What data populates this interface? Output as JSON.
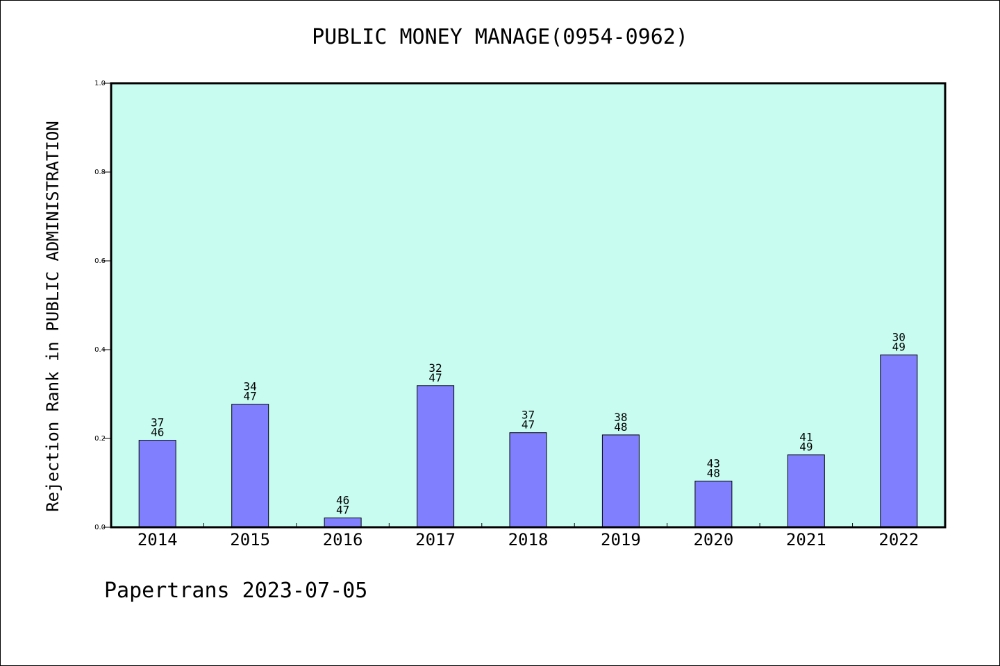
{
  "title": "PUBLIC MONEY MANAGE(0954-0962)",
  "footer": "Papertrans 2023-07-05",
  "colors": {
    "plot_background": "#c8fcf0",
    "bar_fill": "#8080ff",
    "axis": "#000000"
  },
  "chart_data": {
    "type": "bar",
    "title": "PUBLIC MONEY MANAGE(0954-0962)",
    "xlabel": "",
    "ylabel": "Rejection Rank in PUBLIC ADMINISTRATION",
    "ylim": [
      0,
      1.0
    ],
    "yticks": [
      "0.0",
      "0.2",
      "0.4",
      "0.6",
      "0.8",
      "1.0"
    ],
    "grid": false,
    "categories": [
      "2014",
      "2015",
      "2016",
      "2017",
      "2018",
      "2019",
      "2020",
      "2021",
      "2022"
    ],
    "values": [
      0.196,
      0.277,
      0.021,
      0.319,
      0.213,
      0.208,
      0.104,
      0.163,
      0.388
    ],
    "rank": [
      "37",
      "34",
      "46",
      "32",
      "37",
      "38",
      "43",
      "41",
      "30"
    ],
    "total": [
      "46",
      "47",
      "47",
      "47",
      "47",
      "48",
      "48",
      "49",
      "49"
    ]
  }
}
